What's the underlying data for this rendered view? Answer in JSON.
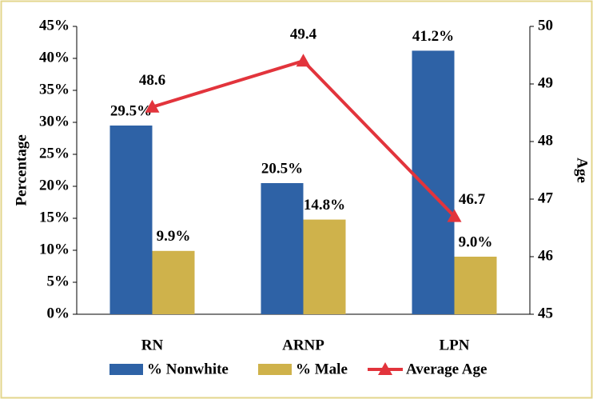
{
  "chart_data": {
    "type": "bar",
    "categories": [
      "RN",
      "ARNP",
      "LPN"
    ],
    "series": [
      {
        "name": "% Nonwhite",
        "color": "#2e62a6",
        "values": [
          29.5,
          20.5,
          41.2
        ],
        "value_labels": [
          "29.5%",
          "20.5%",
          "41.2%"
        ]
      },
      {
        "name": "% Male",
        "color": "#cfb24b",
        "values": [
          9.9,
          14.8,
          9.0
        ],
        "value_labels": [
          "9.9%",
          "14.8%",
          "9.0%"
        ]
      },
      {
        "name": "Average Age",
        "color": "#e2343c",
        "type": "line",
        "axis": "y2",
        "values": [
          48.6,
          49.4,
          46.7
        ]
      }
    ],
    "ylabel": "Percentage",
    "y2label": "Age",
    "ylim": [
      0,
      45
    ],
    "yticks": [
      {
        "value": 0,
        "label": "0%"
      },
      {
        "value": 5,
        "label": "5%"
      },
      {
        "value": 10,
        "label": "10%"
      },
      {
        "value": 15,
        "label": "15%"
      },
      {
        "value": 20,
        "label": "20%"
      },
      {
        "value": 25,
        "label": "25%"
      },
      {
        "value": 30,
        "label": "30%"
      },
      {
        "value": 35,
        "label": "35%"
      },
      {
        "value": 40,
        "label": "40%"
      },
      {
        "value": 45,
        "label": "45%"
      }
    ],
    "y2lim": [
      45,
      50
    ],
    "y2ticks": [
      45,
      46,
      47,
      48,
      49,
      50
    ],
    "grid": false,
    "legend": "bottom"
  }
}
